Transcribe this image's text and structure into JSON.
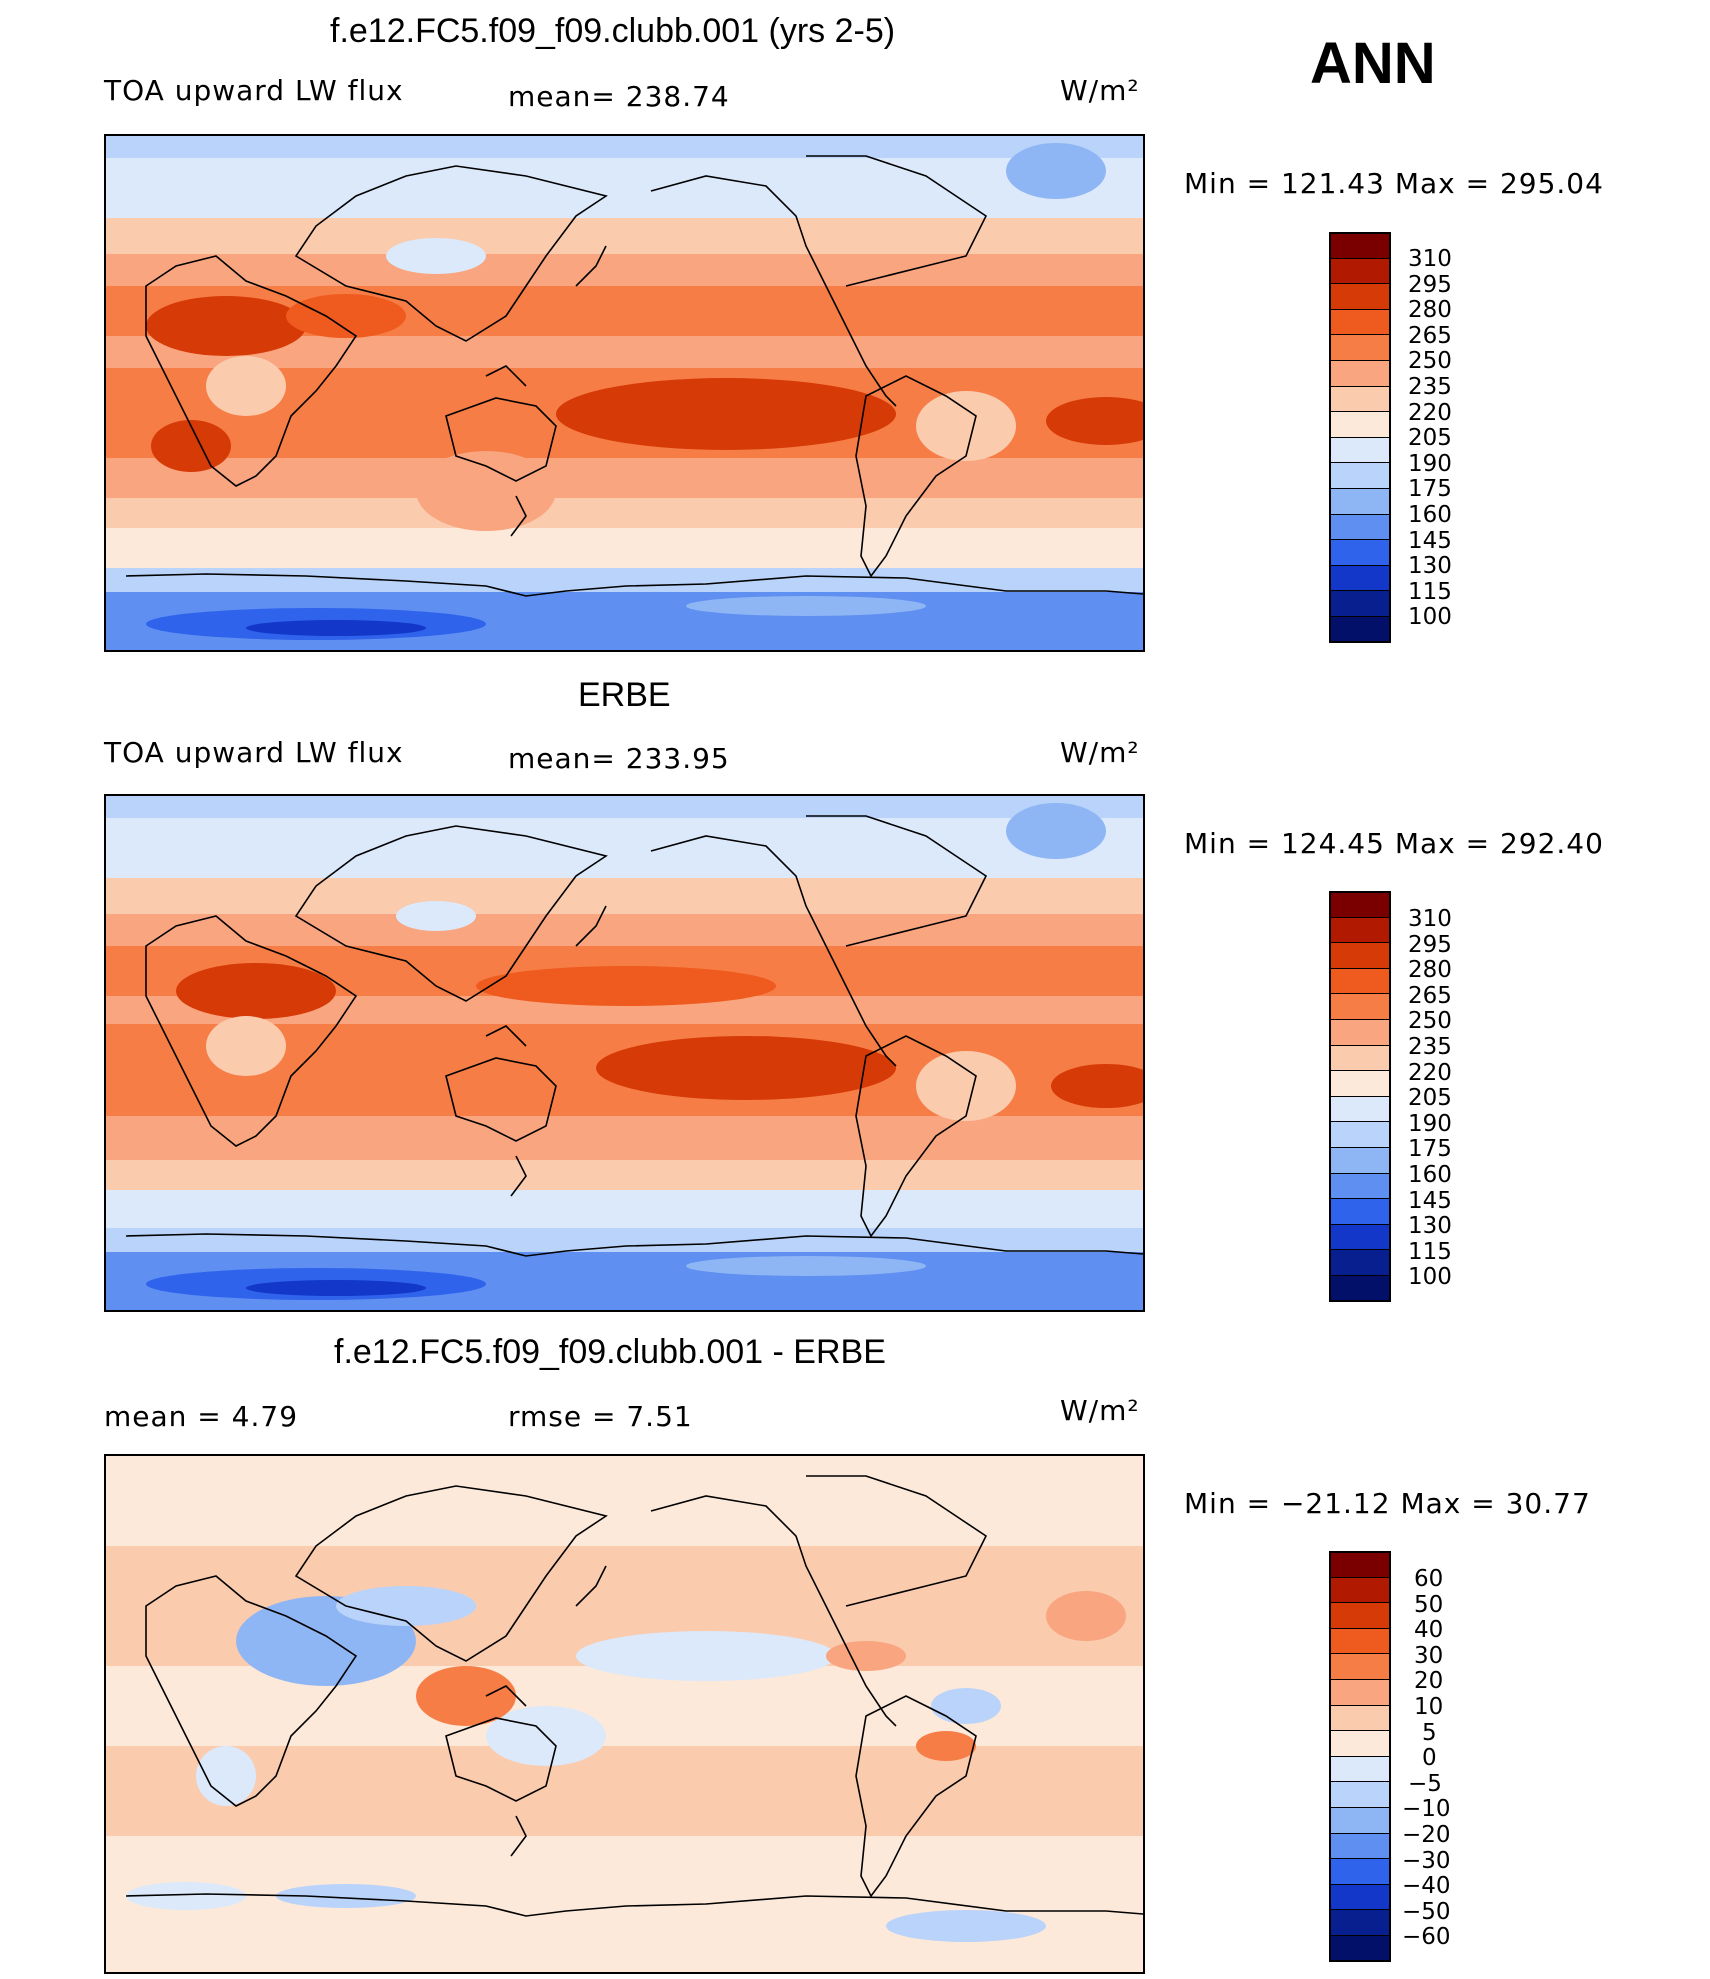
{
  "season": "ANN",
  "units_label": "W/m²",
  "panels": [
    {
      "title": "f.e12.FC5.f09_f09.clubb.001 (yrs 2-5)",
      "left_label": "TOA upward LW flux",
      "mid_label": "mean=  238.74",
      "stats": "Min  =  121.43  Max  =  295.04",
      "colorbar_ticks": [
        "310",
        "295",
        "280",
        "265",
        "250",
        "235",
        "220",
        "205",
        "190",
        "175",
        "160",
        "145",
        "130",
        "115",
        "100"
      ]
    },
    {
      "title": "ERBE",
      "left_label": "TOA upward LW flux",
      "mid_label": "mean=  233.95",
      "stats": "Min  =  124.45  Max  =  292.40",
      "colorbar_ticks": [
        "310",
        "295",
        "280",
        "265",
        "250",
        "235",
        "220",
        "205",
        "190",
        "175",
        "160",
        "145",
        "130",
        "115",
        "100"
      ]
    },
    {
      "title": "f.e12.FC5.f09_f09.clubb.001 - ERBE",
      "left_label": "mean  =     4.79",
      "mid_label": "rmse  =     7.51",
      "stats": "Min  =  −21.12  Max  =    30.77",
      "colorbar_ticks": [
        "60",
        "50",
        "40",
        "30",
        "20",
        "10",
        "5",
        "0",
        "−5",
        "−10",
        "−20",
        "−30",
        "−40",
        "−50",
        "−60"
      ]
    }
  ],
  "colormap": [
    "#7a0000",
    "#b11a00",
    "#d63a07",
    "#ef5a1e",
    "#f67d46",
    "#f9a57f",
    "#fbcbae",
    "#fde9d9",
    "#dbe9fb",
    "#b9d3fa",
    "#8fb6f4",
    "#5f8ff0",
    "#2f63ec",
    "#1237c9",
    "#071f8f",
    "#02106a"
  ],
  "chart_data": [
    {
      "type": "heatmap",
      "title": "f.e12.FC5.f09_f09.clubb.001 (yrs 2-5)",
      "variable": "TOA upward LW flux",
      "units": "W/m²",
      "mean": 238.74,
      "min": 121.43,
      "max": 295.04,
      "levels": [
        100,
        115,
        130,
        145,
        160,
        175,
        190,
        205,
        220,
        235,
        250,
        265,
        280,
        295,
        310
      ]
    },
    {
      "type": "heatmap",
      "title": "ERBE",
      "variable": "TOA upward LW flux",
      "units": "W/m²",
      "mean": 233.95,
      "min": 124.45,
      "max": 292.4,
      "levels": [
        100,
        115,
        130,
        145,
        160,
        175,
        190,
        205,
        220,
        235,
        250,
        265,
        280,
        295,
        310
      ]
    },
    {
      "type": "heatmap",
      "title": "f.e12.FC5.f09_f09.clubb.001 - ERBE",
      "units": "W/m²",
      "mean": 4.79,
      "rmse": 7.51,
      "min": -21.12,
      "max": 30.77,
      "levels": [
        -60,
        -50,
        -40,
        -30,
        -20,
        -10,
        -5,
        0,
        5,
        10,
        20,
        30,
        40,
        50,
        60
      ]
    }
  ]
}
